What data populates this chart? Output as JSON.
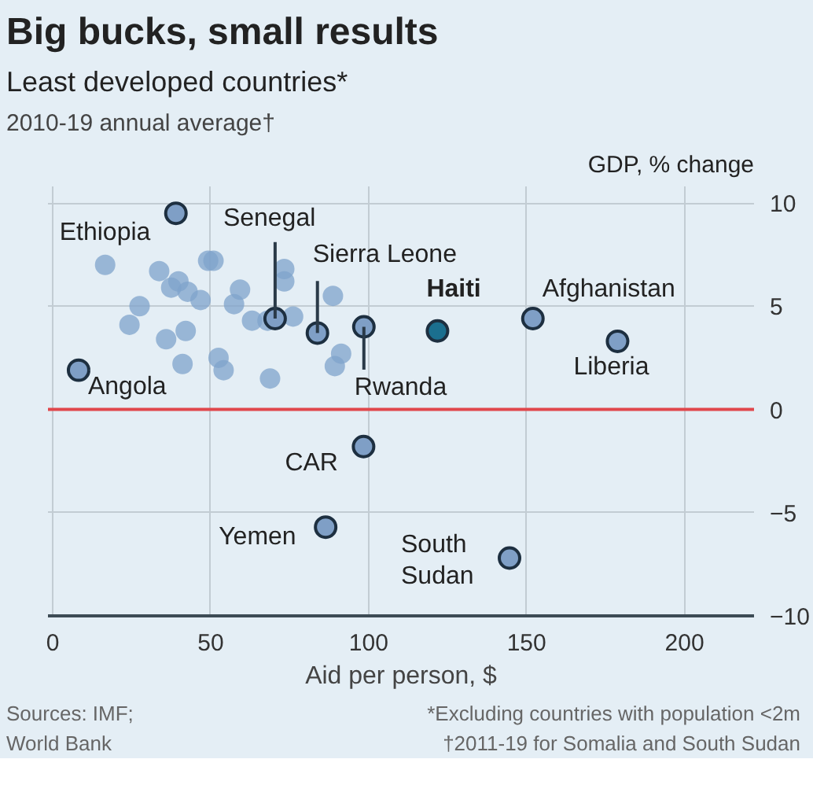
{
  "chart_data": {
    "type": "scatter",
    "title": "Big bucks, small results",
    "subtitle": "Least developed countries*\n2010-19 annual average†",
    "xlabel": "Aid per person, $",
    "ylabel": "GDP, % change",
    "series": [
      {
        "color": "#7fa3cb",
        "x": [
          16.6,
          33.7,
          39.8,
          37.5,
          42.7,
          46.8,
          49.2,
          50.9,
          73.3,
          73.3,
          59.3,
          57.4,
          27.5,
          24.3,
          42.1,
          35.9,
          63.1,
          68.0,
          76.1,
          88.7,
          52.5,
          54.1,
          41.1,
          68.8,
          91.3,
          89.3
        ],
        "values": [
          7.0,
          6.7,
          6.2,
          5.9,
          5.7,
          5.3,
          7.2,
          7.2,
          6.8,
          6.2,
          5.8,
          5.1,
          5.0,
          4.1,
          3.8,
          3.4,
          4.3,
          4.3,
          4.5,
          5.5,
          2.5,
          1.9,
          2.2,
          1.5,
          2.7,
          2.1
        ]
      },
      {
        "color": "#7f9fc6",
        "x": [
          39,
          70.4,
          83.8,
          98.5,
          8.2,
          152,
          178.8,
          98.4,
          86.4,
          144.6
        ],
        "values": [
          9.5,
          4.4,
          3.7,
          4.0,
          1.9,
          4.4,
          3.3,
          -1.8,
          -5.7,
          -7.2
        ]
      },
      {
        "color": "#1b6f8f",
        "x": [
          121.8
        ],
        "values": [
          3.8
        ]
      }
    ],
    "annotations": [
      {
        "text": "Ethiopia",
        "x": 39,
        "y": 9.5
      },
      {
        "text": "Senegal",
        "x": 70.4,
        "y": 4.4
      },
      {
        "text": "Sierra Leone",
        "x": 83.8,
        "y": 3.7
      },
      {
        "text": "Rwanda",
        "x": 98.5,
        "y": 4.0
      },
      {
        "text": "Angola",
        "x": 8.2,
        "y": 1.9
      },
      {
        "text": "Afghanistan",
        "x": 152,
        "y": 4.4
      },
      {
        "text": "Liberia",
        "x": 178.8,
        "y": 3.3
      },
      {
        "text": "CAR",
        "x": 98.4,
        "y": -1.8
      },
      {
        "text": "Yemen",
        "x": 86.4,
        "y": -5.7
      },
      {
        "text": "South\nSudan",
        "x": 144.6,
        "y": -7.2
      },
      {
        "text": "Haiti",
        "x": 121.8,
        "y": 3.8
      },
      "Sources: IMF;\nWorld Bank",
      "*Excluding countries with population <2m\n†2011-19 for Somalia and South Sudan"
    ],
    "ref_lines": [
      {
        "axis": "y",
        "value": 0,
        "color": "#e0474c"
      }
    ],
    "xlim": [
      -1.5,
      222
    ],
    "ylim": [
      -10,
      10.8
    ],
    "xticks": [
      0,
      50,
      100,
      150,
      200
    ],
    "yticks": [
      10,
      5,
      0,
      -5,
      -10
    ],
    "grid": true,
    "marker": "circle"
  }
}
